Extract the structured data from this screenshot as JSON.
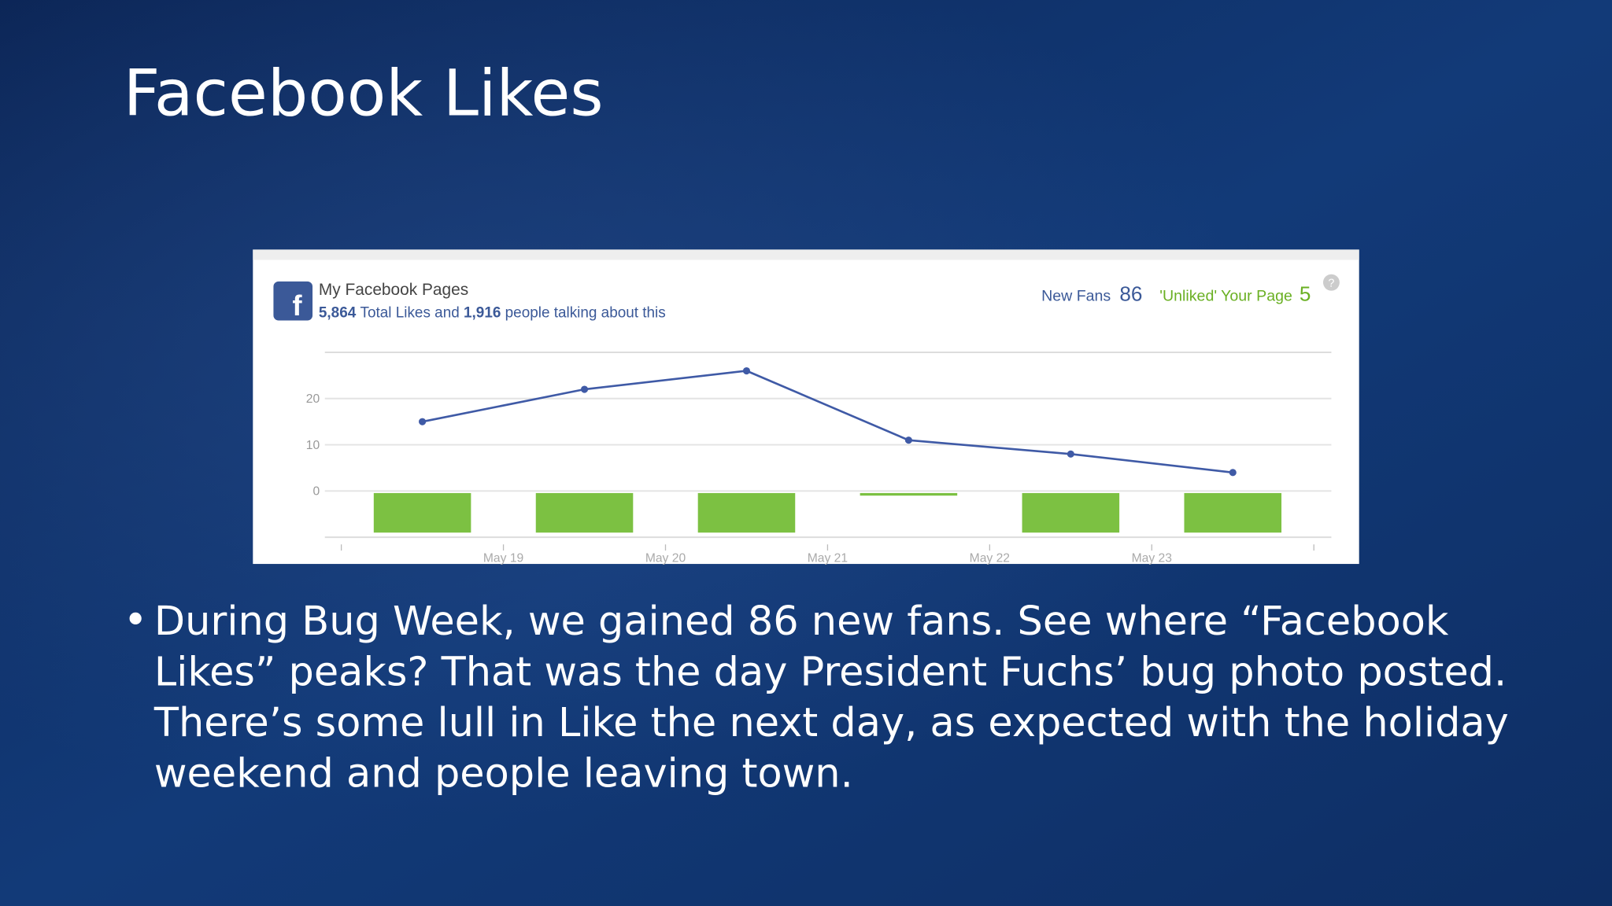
{
  "slide": {
    "title": "Facebook Likes",
    "bullet_lines": [
      "During Bug Week, we gained 86 new fans. See where “Facebook",
      "Likes” peaks? That was the day President Fuchs’ bug photo posted.",
      "There’s some lull in Like the next day, as expected with the holiday",
      "weekend and people leaving town."
    ]
  },
  "widget": {
    "icon": "f",
    "heading": "My Facebook Pages",
    "total_likes": "5,864",
    "likes_text": "Total Likes and",
    "talking": "1,916",
    "talking_text": "people talking about this",
    "new_fans_label": "New Fans",
    "new_fans": "86",
    "unliked_label": "'Unliked' Your Page",
    "unliked": "5",
    "help": "?"
  },
  "chart_data": {
    "type": "line-bar",
    "x": [
      18.5,
      19.5,
      20.5,
      21.5,
      22.5,
      23.5
    ],
    "series": [
      {
        "type": "line",
        "color": "#3f5aa6",
        "values": [
          15,
          22,
          26,
          11,
          8,
          4
        ]
      },
      {
        "type": "bar",
        "color": "#7cc142",
        "values": [
          -9,
          -9,
          -9,
          -1,
          -9,
          -9
        ]
      }
    ],
    "xlim": [
      18,
      24
    ],
    "xticks": [
      {
        "value": 19,
        "label": "May 19"
      },
      {
        "value": 20,
        "label": "May 20"
      },
      {
        "value": 21,
        "label": "May 21"
      },
      {
        "value": 22,
        "label": "May 22"
      },
      {
        "value": 23,
        "label": "May 23"
      }
    ],
    "ylim": [
      -10,
      30
    ],
    "yticks": [
      0,
      10,
      20
    ],
    "grid": true
  }
}
